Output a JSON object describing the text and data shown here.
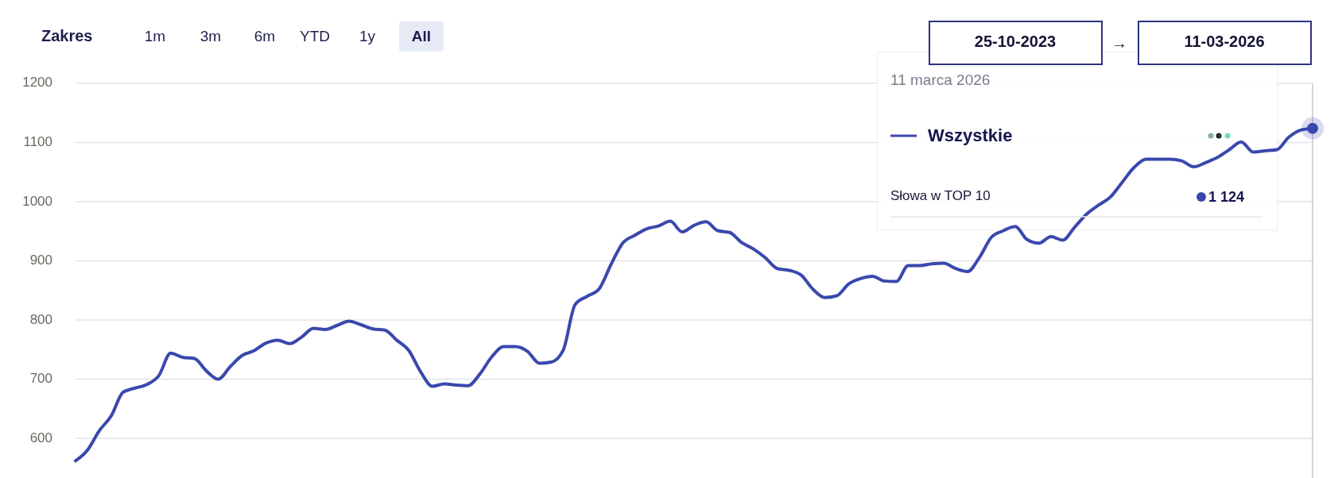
{
  "chart_data": {
    "type": "line",
    "categories": [
      null,
      null,
      null,
      null,
      null,
      null,
      null,
      null,
      null,
      null,
      null,
      null,
      null,
      null,
      null,
      null,
      null,
      null,
      null,
      null,
      null,
      null,
      null,
      null,
      null,
      null,
      null,
      null,
      null,
      null,
      null,
      null,
      null,
      null,
      null,
      null,
      null,
      null,
      null,
      null,
      null,
      null,
      null,
      null,
      null,
      null,
      null,
      null,
      null,
      null,
      null,
      null,
      null,
      null,
      null,
      null,
      null,
      null,
      null,
      null,
      null,
      null,
      null,
      null,
      null,
      null,
      null,
      null,
      null,
      null,
      null,
      null,
      null,
      null,
      null,
      null,
      null,
      null,
      null,
      null,
      null,
      null,
      null,
      null,
      null,
      null,
      null,
      null,
      null,
      null,
      null,
      null,
      null,
      null,
      null,
      null,
      null,
      null,
      null,
      null,
      null,
      null,
      null,
      null,
      null
    ],
    "series": [
      {
        "name": "Wszystkie",
        "color": "#3a48ad",
        "values": [
          562,
          580,
          613,
          638,
          678,
          685,
          691,
          706,
          744,
          737,
          735,
          714,
          700,
          721,
          740,
          748,
          761,
          766,
          760,
          771,
          786,
          784,
          791,
          798,
          792,
          785,
          783,
          766,
          749,
          713,
          688,
          692,
          690,
          689,
          709,
          738,
          755,
          755,
          747,
          727,
          729,
          749,
          826,
          840,
          852,
          893,
          930,
          943,
          954,
          959,
          967,
          949,
          960,
          966,
          951,
          948,
          931,
          920,
          905,
          887,
          884,
          876,
          852,
          838,
          841,
          861,
          870,
          874,
          866,
          865,
          892,
          892,
          895,
          896,
          887,
          882,
          906,
          940,
          951,
          958,
          936,
          930,
          941,
          935,
          957,
          979,
          994,
          1008,
          1033,
          1058,
          1072,
          1072,
          1072,
          1069,
          1059,
          1066,
          1075,
          1088,
          1101,
          1084,
          1086,
          1088,
          1109,
          1121,
          1124
        ]
      }
    ],
    "ylim": [
      533,
      1200
    ],
    "yticks": [
      600,
      700,
      800,
      900,
      1000,
      1100,
      1200
    ],
    "grid": "y",
    "legend": "top right",
    "marker": "none",
    "line_style": "solid",
    "annotations": [
      "Zakres",
      "1m",
      "3m",
      "6m",
      "YTD",
      "1y",
      "All",
      "25-10-2023",
      "→",
      "11-03-2026",
      "11 marca 2026",
      "Słowa w TOP 10",
      "1 124"
    ]
  }
}
